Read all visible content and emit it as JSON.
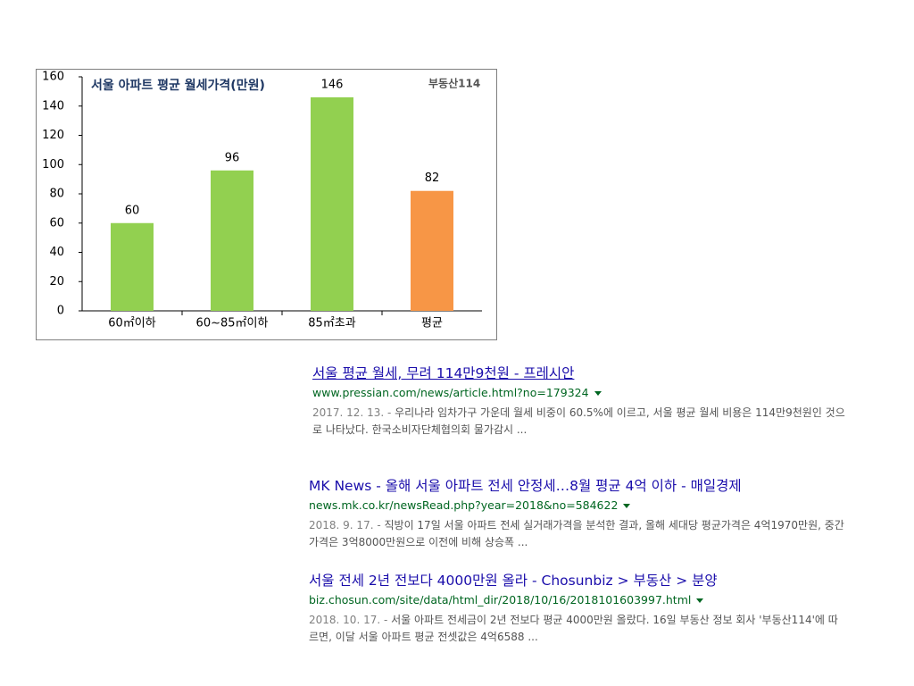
{
  "chart_data": {
    "type": "bar",
    "title": "서울 아파트 평균 월세가격(만원)",
    "logo": "부동산114",
    "categories": [
      "60㎡이하",
      "60~85㎡이하",
      "85㎡초과",
      "평균"
    ],
    "values": [
      60,
      96,
      146,
      82
    ],
    "colors": [
      "#92d050",
      "#92d050",
      "#92d050",
      "#f79646"
    ],
    "ylim": [
      0,
      160
    ],
    "yticks": [
      0,
      20,
      40,
      60,
      80,
      100,
      120,
      140,
      160
    ],
    "grid": false
  },
  "results": [
    {
      "title": "서울 평균 월세, 무려 114만9천원 - 프레시안",
      "url": "www.pressian.com/news/article.html?no=179324",
      "date": "2017. 12. 13. - ",
      "snippet": "우리나라 임차가구 가운데 월세 비중이 60.5%에 이르고, 서울 평균 월세 비용은 114만9천원인 것으로 나타났다. 한국소비자단체협의회 물가감시 ..."
    },
    {
      "title": "MK News - 올해 서울 아파트 전세 안정세…8월 평균 4억 이하 - 매일경제",
      "url": "news.mk.co.kr/newsRead.php?year=2018&no=584622",
      "date": "2018. 9. 17. - ",
      "snippet": "직방이 17일 서울 아파트 전세 실거래가격을 분석한 결과, 올해 세대당 평균가격은 4억1970만원, 중간가격은 3억8000만원으로 이전에 비해 상승폭 ..."
    },
    {
      "title": "서울 전세 2년 전보다 4000만원 올라 - Chosunbiz > 부동산 > 분양",
      "url": "biz.chosun.com/site/data/html_dir/2018/10/16/2018101603997.html",
      "date": "2018. 10. 17. - ",
      "snippet": "서울 아파트 전세금이 2년 전보다 평균 4000만원 올랐다. 16일 부동산 정보 회사 '부동산114'에 따르면, 이달 서울 아파트 평균 전셋값은 4억6588 ..."
    }
  ]
}
